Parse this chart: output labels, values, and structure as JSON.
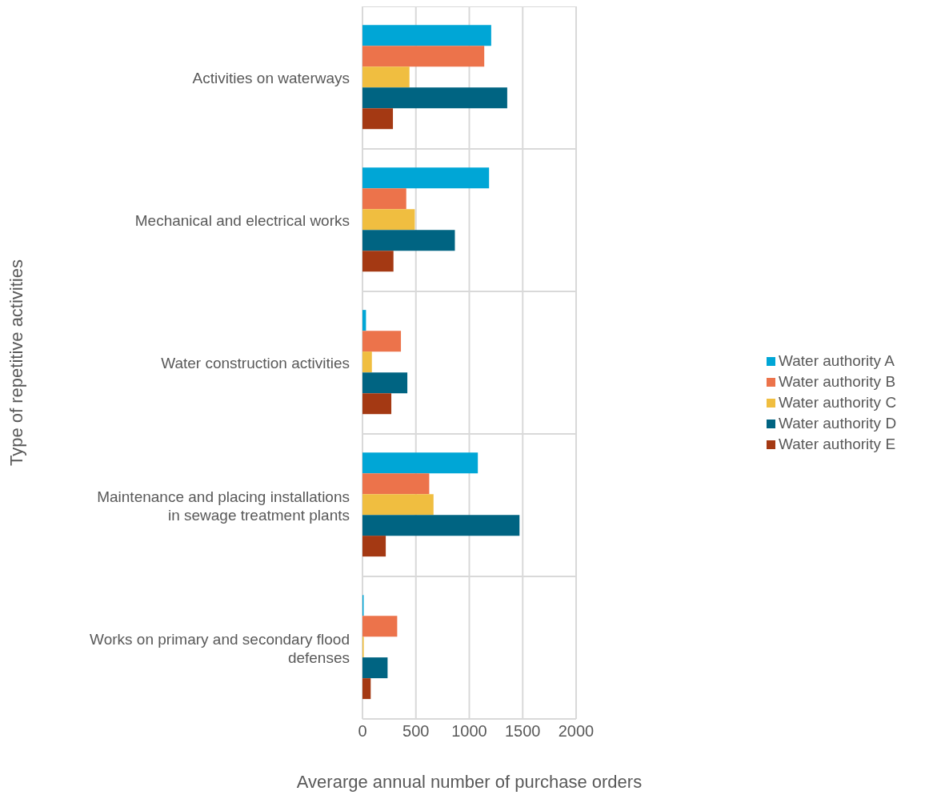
{
  "chart_data": {
    "type": "bar",
    "orientation": "horizontal",
    "xlabel": "Averarge annual number of purchase orders",
    "ylabel": "Type of repetitive activities",
    "categories": [
      "Activities on waterways",
      "Mechanical and electrical works",
      "Water construction activities",
      "Maintenance and placing installations in sewage treatment plants",
      "Works on primary and secondary flood defenses"
    ],
    "series": [
      {
        "name": "Water authority A",
        "color": "#00a6d6",
        "values": [
          1205,
          1185,
          33,
          1080,
          11
        ]
      },
      {
        "name": "Water authority B",
        "color": "#ec734b",
        "values": [
          1140,
          410,
          360,
          625,
          325
        ]
      },
      {
        "name": "Water authority C",
        "color": "#f0be40",
        "values": [
          440,
          490,
          88,
          665,
          12
        ]
      },
      {
        "name": "Water authority D",
        "color": "#006482",
        "values": [
          1355,
          865,
          420,
          1470,
          235
        ]
      },
      {
        "name": "Water authority E",
        "color": "#a43913",
        "values": [
          285,
          290,
          270,
          218,
          77
        ]
      }
    ],
    "xlim": [
      0,
      2000
    ],
    "xticks": [
      0,
      500,
      1000,
      1500,
      2000
    ],
    "grid": true,
    "legend": "right"
  }
}
